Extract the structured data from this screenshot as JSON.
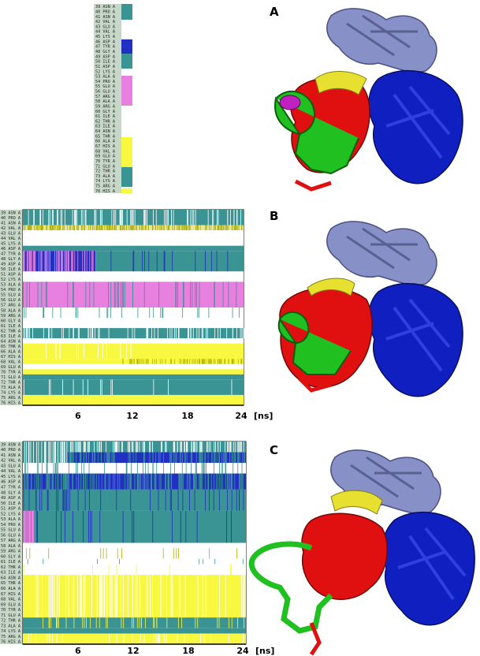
{
  "panels": [
    {
      "label": "A"
    },
    {
      "label": "B"
    },
    {
      "label": "C"
    }
  ],
  "residues": [
    "39 ASN A",
    "40 PRO A",
    "41 ASN A",
    "42 VAL A",
    "43 GLU A",
    "44 VAL A",
    "45 LYS A",
    "46 ASP A",
    "47 TYR A",
    "48 GLY A",
    "49 ASP A",
    "50 ILE A",
    "51 ASP A",
    "52 LYS A",
    "53 ALA A",
    "54 PRO A",
    "55 GLU A",
    "56 GLU A",
    "57 ARG A",
    "58 ALA A",
    "59 ARG A",
    "60 GLY A",
    "61 ILE A",
    "62 THR A",
    "63 ILE A",
    "64 ASN A",
    "65 THR A",
    "66 ALA A",
    "67 HIS A",
    "68 VAL A",
    "69 GLU A",
    "70 TYR A",
    "71 GLU A",
    "72 THR A",
    "73 ALA A",
    "74 LYS A",
    "75 ARG A",
    "76 HIS A"
  ],
  "axis": {
    "ticks": [
      "6",
      "12",
      "18",
      "24"
    ],
    "unit": "[ns]"
  },
  "colors": {
    "turn": "#3a9494",
    "helix": "#f0d0f0",
    "alpha_helix": "#e880e0",
    "three_ten_helix": "#2030c0",
    "coil_white": "#ffffff",
    "bridge": "#b0b000",
    "extended": "#f8f840",
    "protein_red": "#e01010",
    "protein_blue": "#1020c0",
    "protein_slate": "#8890c8",
    "protein_green": "#20c020",
    "protein_yellow": "#e8e030",
    "protein_magenta": "#c020c0"
  }
}
